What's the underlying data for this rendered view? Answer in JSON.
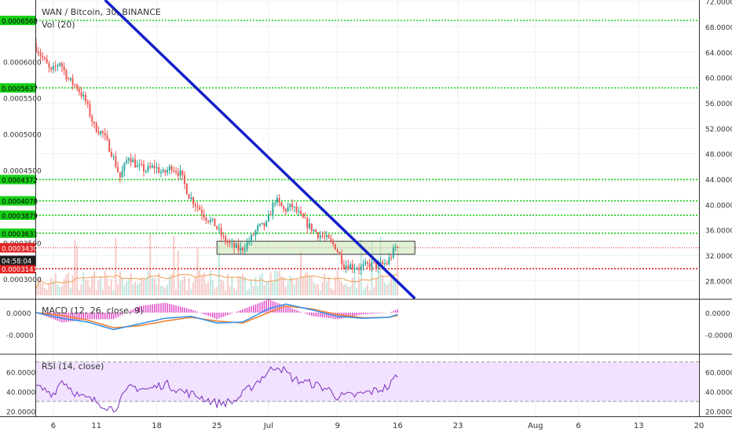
{
  "colors": {
    "up": "#26a69a",
    "down": "#ef5350",
    "support_green": "#18d018",
    "resistance_red": "#e32222",
    "trendline": "#1420c8",
    "zone_fill": "#c8e6b4",
    "zone_stroke": "#3a3a3a",
    "macd_line": "#2f8fe8",
    "signal_line": "#f07f2a",
    "histogram": "#e050c8",
    "rsi_line": "#7b2fbf",
    "rsi_band": "#f1e2ff",
    "vol_ma": "#f0a050",
    "price_tag_red": "#e32222",
    "time_tag": "#1e1e1e"
  },
  "chart_data": {
    "type": "candlestick",
    "symbol_title": "WAN / Bitcoin, 30, BINANCE",
    "volume_title": "Vol (20)",
    "left_axis": {
      "labels": [
        "0.0006000",
        "0.0005500",
        "0.0005000",
        "0.0004500",
        "0.0003500",
        "0.0003000"
      ],
      "values": [
        0.0006,
        0.00055,
        0.0005,
        0.00045,
        0.00035,
        0.0003
      ],
      "ylim": [
        0.000273,
        0.000685
      ]
    },
    "right_axis": {
      "labels": [
        "72.0000",
        "68.0000",
        "64.0000",
        "60.0000",
        "56.0000",
        "52.0000",
        "48.0000",
        "44.0000",
        "40.0000",
        "36.0000",
        "32.0000",
        "28.0000"
      ],
      "values": [
        72,
        68,
        64,
        60,
        56,
        52,
        48,
        44,
        40,
        36,
        32,
        28
      ],
      "ylim": [
        25.2,
        72.2
      ]
    },
    "x_axis": {
      "labels": [
        "6",
        "11",
        "18",
        "25",
        "Jul",
        "9",
        "16",
        "23",
        "Aug",
        "6",
        "13",
        "20"
      ],
      "dates": [
        "2018-06-06",
        "2018-06-11",
        "2018-06-18",
        "2018-06-25",
        "2018-07-01",
        "2018-07-09",
        "2018-07-16",
        "2018-07-23",
        "2018-08-01",
        "2018-08-06",
        "2018-08-13",
        "2018-08-20"
      ],
      "range": [
        "2018-06-04",
        "2018-08-20"
      ]
    },
    "candle_range": [
      "2018-06-04",
      "2018-07-16"
    ],
    "price_path": [
      [
        "2018-06-04",
        0.000625
      ],
      [
        "2018-06-05",
        0.000605
      ],
      [
        "2018-06-06",
        0.000585
      ],
      [
        "2018-06-07",
        0.0006
      ],
      [
        "2018-06-08",
        0.000575
      ],
      [
        "2018-06-09",
        0.000565
      ],
      [
        "2018-06-10",
        0.000545
      ],
      [
        "2018-06-11",
        0.00051
      ],
      [
        "2018-06-12",
        0.0005
      ],
      [
        "2018-06-13",
        0.000475
      ],
      [
        "2018-06-14",
        0.00044
      ],
      [
        "2018-06-15",
        0.00047
      ],
      [
        "2018-06-16",
        0.000455
      ],
      [
        "2018-06-17",
        0.00045
      ],
      [
        "2018-06-18",
        0.000455
      ],
      [
        "2018-06-19",
        0.000445
      ],
      [
        "2018-06-20",
        0.000455
      ],
      [
        "2018-06-21",
        0.000445
      ],
      [
        "2018-06-22",
        0.000415
      ],
      [
        "2018-06-23",
        0.0004
      ],
      [
        "2018-06-24",
        0.000385
      ],
      [
        "2018-06-25",
        0.000375
      ],
      [
        "2018-06-26",
        0.000355
      ],
      [
        "2018-06-27",
        0.000345
      ],
      [
        "2018-06-28",
        0.00034
      ],
      [
        "2018-06-29",
        0.000352
      ],
      [
        "2018-06-30",
        0.00037
      ],
      [
        "2018-07-01",
        0.000375
      ],
      [
        "2018-07-02",
        0.00041
      ],
      [
        "2018-07-03",
        0.000395
      ],
      [
        "2018-07-04",
        0.0004
      ],
      [
        "2018-07-05",
        0.000385
      ],
      [
        "2018-07-06",
        0.000372
      ],
      [
        "2018-07-07",
        0.000362
      ],
      [
        "2018-07-08",
        0.000355
      ],
      [
        "2018-07-09",
        0.000345
      ],
      [
        "2018-07-10",
        0.00032
      ],
      [
        "2018-07-11",
        0.000318
      ],
      [
        "2018-07-12",
        0.000315
      ],
      [
        "2018-07-13",
        0.00032
      ],
      [
        "2018-07-14",
        0.000318
      ],
      [
        "2018-07-15",
        0.000322
      ],
      [
        "2018-07-16",
        0.000343
      ]
    ],
    "horizontal_levels": [
      {
        "price": 0.0006568,
        "label": "0.0006568",
        "color": "green"
      },
      {
        "price": 0.0005637,
        "label": "0.0005637",
        "color": "green"
      },
      {
        "price": 0.0004372,
        "label": "0.0004372",
        "color": "green"
      },
      {
        "price": 0.0004078,
        "label": "0.0004078",
        "color": "green"
      },
      {
        "price": 0.0003879,
        "label": "0.0003879",
        "color": "green"
      },
      {
        "price": 0.0003631,
        "label": "0.0003631",
        "color": "green"
      },
      {
        "price": 0.0003141,
        "label": "0.0003141",
        "color": "red"
      }
    ],
    "current_price": {
      "label": "0.0003430",
      "price": 0.000343,
      "countdown": "04:58:04"
    },
    "trendline": {
      "start": {
        "date": "2018-06-12",
        "price": 0.000685
      },
      "end": {
        "date": "2018-07-18",
        "price": 0.000273
      }
    },
    "zone": {
      "start": "2018-06-25",
      "end": "2018-07-18",
      "top_price": 0.000352,
      "bottom_price": 0.000334
    },
    "macd": {
      "title": "MACD (12, 26, close, 9)",
      "axis_labels": [
        "0.0000",
        "-0.0000"
      ],
      "macd_path": [
        [
          "2018-06-04",
          0.0
        ],
        [
          "2018-06-07",
          -0.6
        ],
        [
          "2018-06-10",
          -1.0
        ],
        [
          "2018-06-13",
          -1.8
        ],
        [
          "2018-06-16",
          -1.2
        ],
        [
          "2018-06-19",
          -0.6
        ],
        [
          "2018-06-22",
          -0.4
        ],
        [
          "2018-06-25",
          -1.1
        ],
        [
          "2018-06-28",
          -1.0
        ],
        [
          "2018-07-01",
          0.4
        ],
        [
          "2018-07-03",
          0.9
        ],
        [
          "2018-07-06",
          0.3
        ],
        [
          "2018-07-09",
          -0.4
        ],
        [
          "2018-07-12",
          -0.6
        ],
        [
          "2018-07-15",
          -0.5
        ],
        [
          "2018-07-16",
          -0.2
        ]
      ],
      "signal_path": [
        [
          "2018-06-04",
          0.0
        ],
        [
          "2018-06-07",
          -0.3
        ],
        [
          "2018-06-10",
          -0.8
        ],
        [
          "2018-06-13",
          -1.6
        ],
        [
          "2018-06-16",
          -1.4
        ],
        [
          "2018-06-19",
          -0.9
        ],
        [
          "2018-06-22",
          -0.5
        ],
        [
          "2018-06-25",
          -0.9
        ],
        [
          "2018-06-28",
          -1.1
        ],
        [
          "2018-07-01",
          0.0
        ],
        [
          "2018-07-03",
          0.7
        ],
        [
          "2018-07-06",
          0.4
        ],
        [
          "2018-07-09",
          -0.2
        ],
        [
          "2018-07-12",
          -0.55
        ],
        [
          "2018-07-15",
          -0.5
        ],
        [
          "2018-07-16",
          -0.3
        ]
      ]
    },
    "rsi": {
      "title": "RSI (14, close)",
      "left_axis": [
        "60.0000",
        "40.0000",
        "20.0000"
      ],
      "right_axis": [
        "60.0000",
        "40.0000",
        "20.0000"
      ],
      "ylim": [
        15,
        77
      ],
      "band": [
        30,
        70
      ],
      "path": [
        [
          "2018-06-04",
          45
        ],
        [
          "2018-06-06",
          38
        ],
        [
          "2018-06-07",
          52
        ],
        [
          "2018-06-09",
          35
        ],
        [
          "2018-06-11",
          30
        ],
        [
          "2018-06-13",
          22
        ],
        [
          "2018-06-15",
          45
        ],
        [
          "2018-06-17",
          42
        ],
        [
          "2018-06-19",
          48
        ],
        [
          "2018-06-21",
          40
        ],
        [
          "2018-06-23",
          35
        ],
        [
          "2018-06-25",
          28
        ],
        [
          "2018-06-27",
          30
        ],
        [
          "2018-06-29",
          45
        ],
        [
          "2018-07-01",
          60
        ],
        [
          "2018-07-02",
          67
        ],
        [
          "2018-07-04",
          52
        ],
        [
          "2018-07-06",
          48
        ],
        [
          "2018-07-08",
          42
        ],
        [
          "2018-07-09",
          35
        ],
        [
          "2018-07-11",
          36
        ],
        [
          "2018-07-13",
          40
        ],
        [
          "2018-07-15",
          45
        ],
        [
          "2018-07-16",
          58
        ]
      ]
    }
  }
}
